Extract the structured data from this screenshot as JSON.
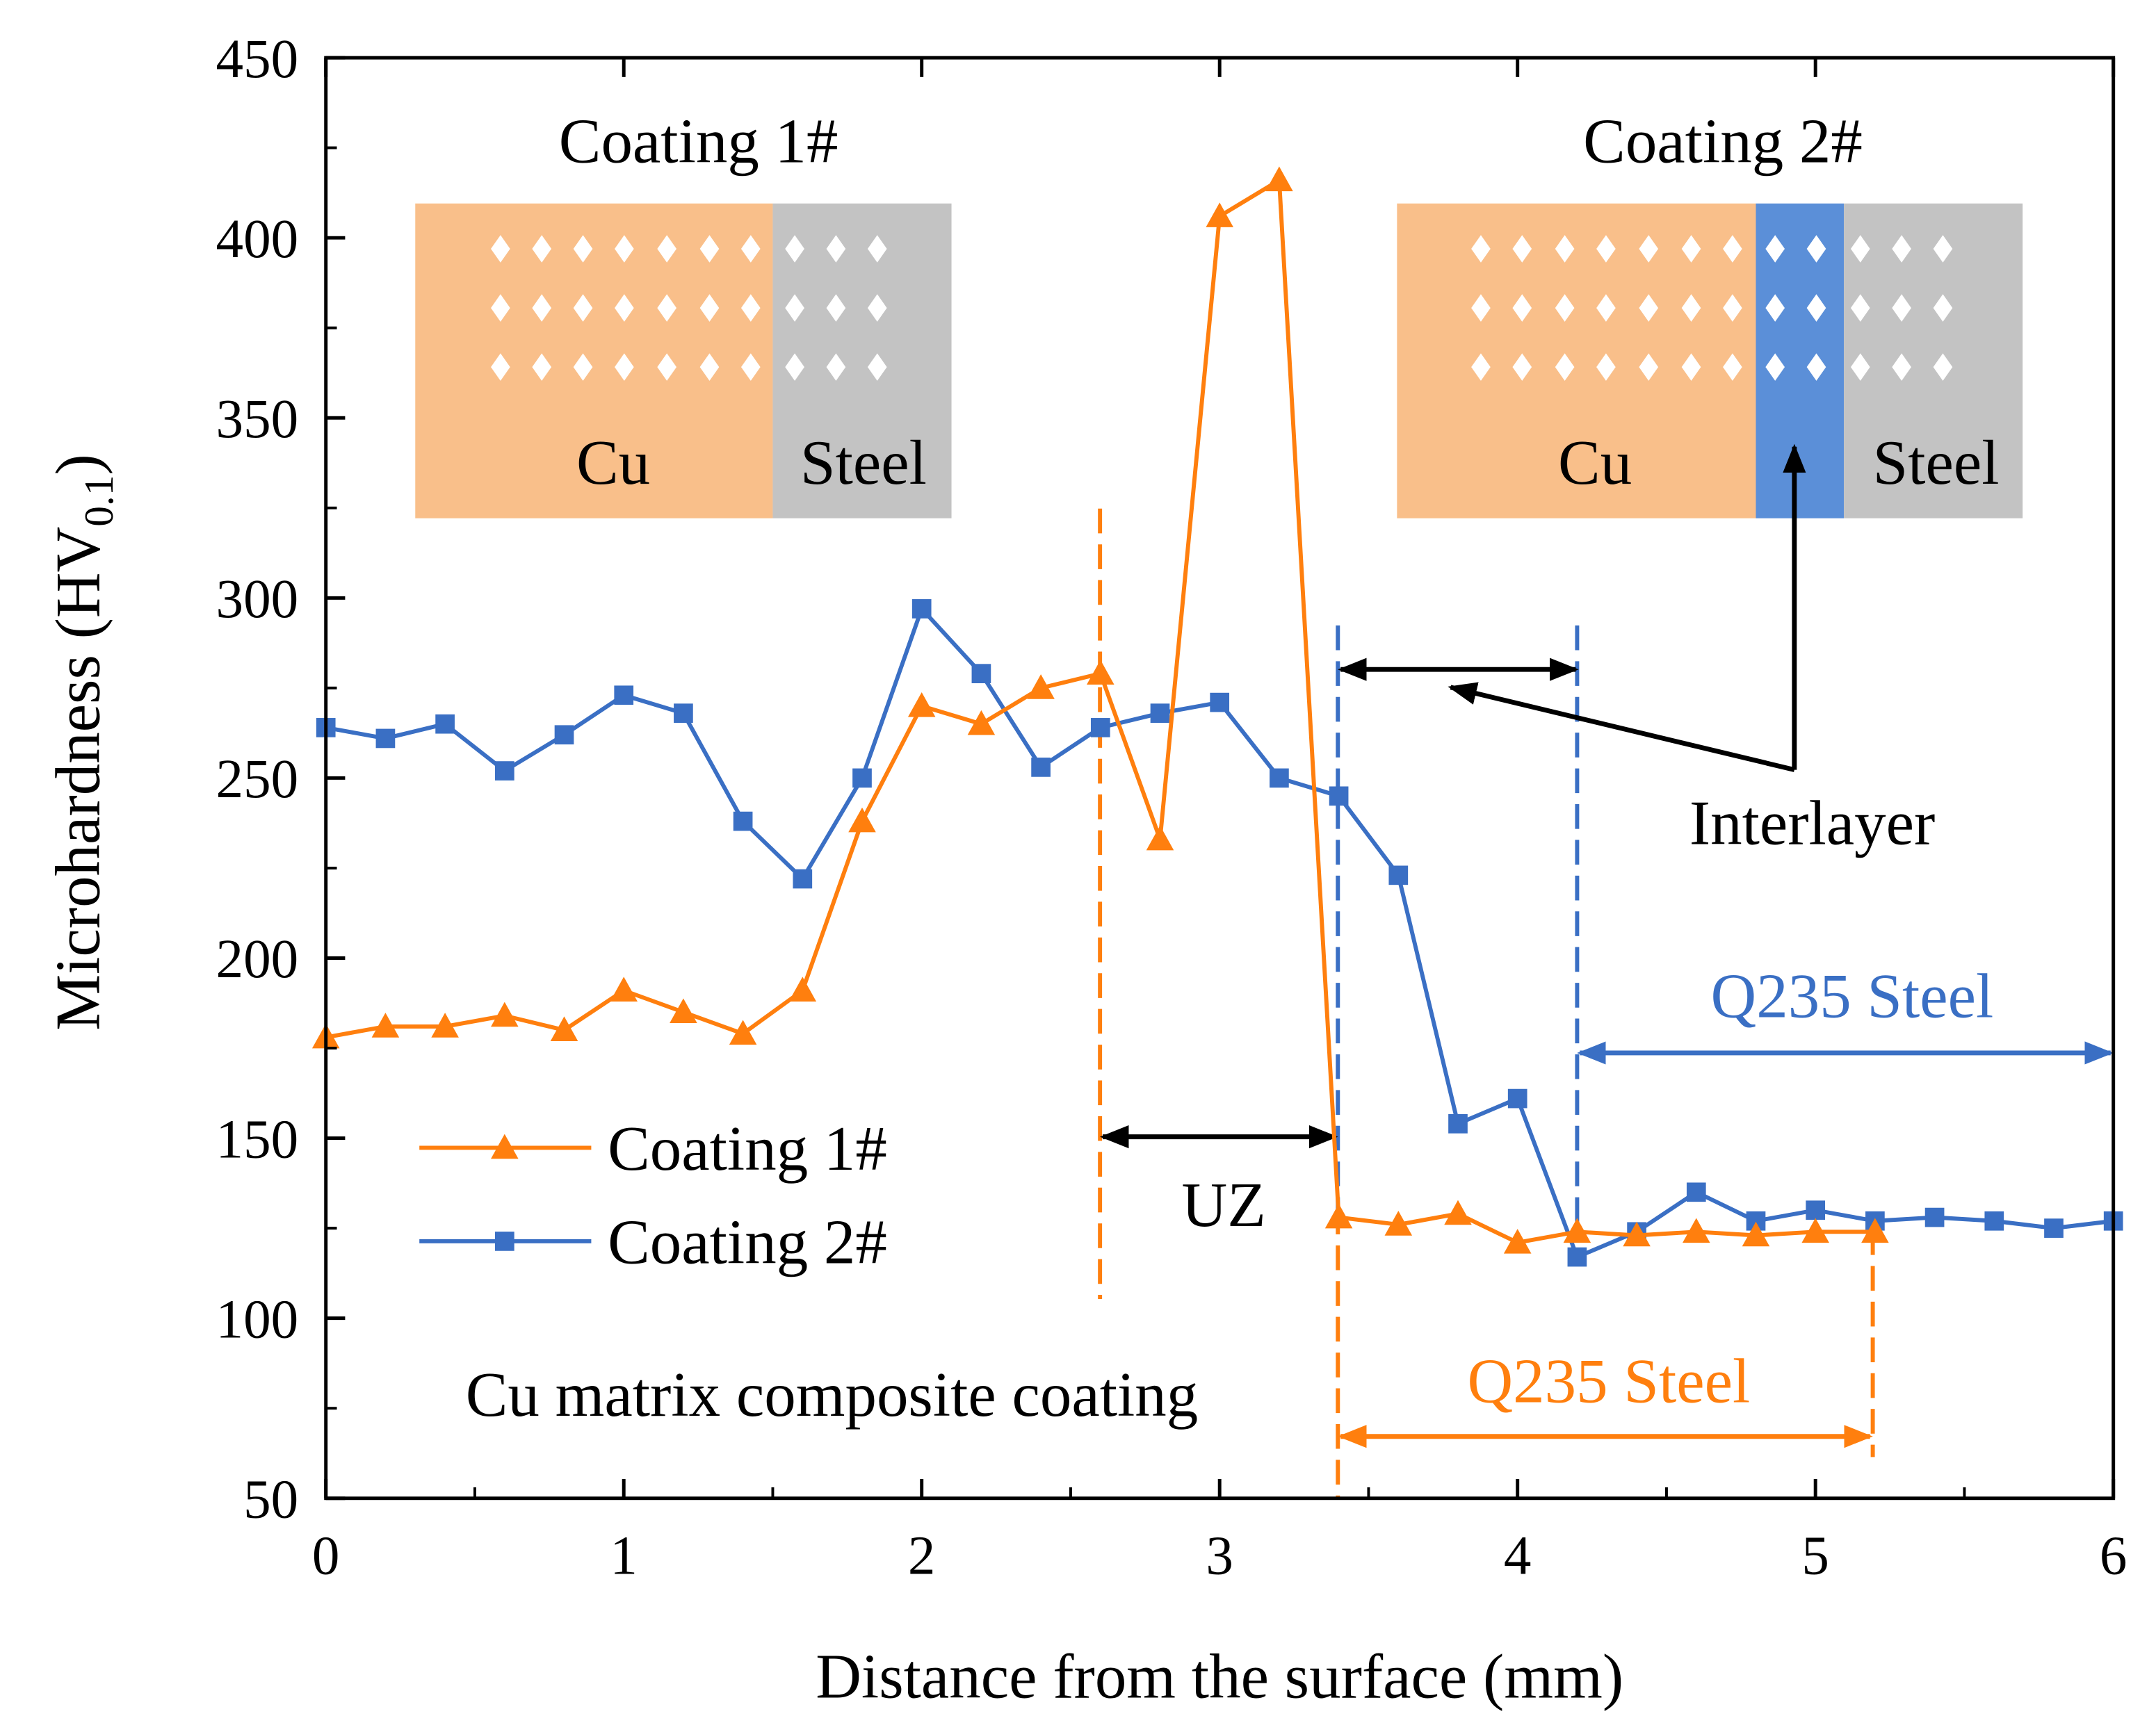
{
  "chart_data": {
    "type": "line",
    "xlabel": "Distance from the surface (mm)",
    "ylabel_main": "Microhardness (HV",
    "ylabel_sub": "0.1",
    "ylabel_close": ")",
    "xlim": [
      0,
      6
    ],
    "ylim": [
      50,
      450
    ],
    "xticks": [
      "0",
      "1",
      "2",
      "3",
      "4",
      "5",
      "6"
    ],
    "yticks": [
      "50",
      "100",
      "150",
      "200",
      "250",
      "300",
      "350",
      "400",
      "450"
    ],
    "grid": false,
    "legend_position": "lower-left",
    "series": [
      {
        "name": "Coating 1#",
        "color": "#FF7F0E",
        "marker": "triangle",
        "x": [
          0,
          0.2,
          0.4,
          0.6,
          0.8,
          1.0,
          1.2,
          1.4,
          1.6,
          1.8,
          2.0,
          2.2,
          2.4,
          2.6,
          2.8,
          3.0,
          3.2,
          3.4,
          3.6,
          3.8,
          4.0,
          4.2,
          4.4,
          4.6,
          4.8,
          5.0,
          5.2
        ],
        "y": [
          178,
          181,
          181,
          184,
          180,
          191,
          185,
          179,
          191,
          238,
          270,
          265,
          275,
          279,
          233,
          406,
          416,
          128,
          126,
          129,
          121,
          124,
          123,
          124,
          123,
          124,
          124
        ]
      },
      {
        "name": "Coating 2#",
        "color": "#3A6FC4",
        "marker": "square",
        "x": [
          0,
          0.2,
          0.4,
          0.6,
          0.8,
          1.0,
          1.2,
          1.4,
          1.6,
          1.8,
          2.0,
          2.2,
          2.4,
          2.6,
          2.8,
          3.0,
          3.2,
          3.4,
          3.6,
          3.8,
          4.0,
          4.2,
          4.4,
          4.6,
          4.8,
          5.0,
          5.2,
          5.4,
          5.6,
          5.8,
          6.0
        ],
        "y": [
          264,
          261,
          265,
          252,
          262,
          273,
          268,
          238,
          222,
          250,
          297,
          279,
          253,
          264,
          268,
          271,
          250,
          245,
          223,
          154,
          161,
          117,
          124,
          135,
          127,
          130,
          127,
          128,
          127,
          125,
          127
        ]
      }
    ],
    "annotations": {
      "inset1_title": "Coating 1#",
      "inset1_cu": "Cu",
      "inset1_steel": "Steel",
      "inset2_title": "Coating 2#",
      "inset2_cu": "Cu",
      "inset2_steel": "Steel",
      "interlayer": "Interlayer",
      "uz": "UZ",
      "q235_orange": "Q235 Steel",
      "q235_blue": "Q235 Steel",
      "cu_matrix": "Cu matrix composite coating"
    },
    "colors": {
      "orange": "#FF7F0E",
      "blue": "#3A6FC4",
      "inset_cu": "#F9BF8A",
      "inset_steel": "#C3C3C3",
      "inset_interlayer": "#5B8FD8"
    }
  }
}
